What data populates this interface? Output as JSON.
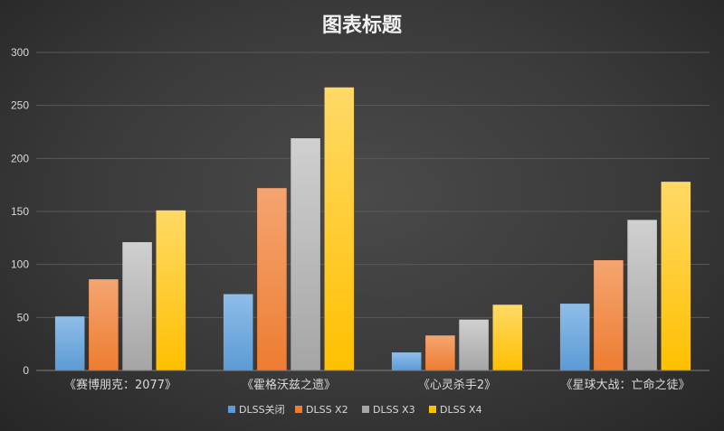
{
  "title": "图表标题",
  "colors": {
    "background": "#3a3a3a",
    "grid": "#595959",
    "text": "#d9d9d9",
    "series": [
      "#5b9bd5",
      "#ed7d31",
      "#a5a5a5",
      "#ffc000"
    ],
    "series_light": [
      "#8fbde8",
      "#f5a571",
      "#d0d0d0",
      "#ffd966"
    ]
  },
  "chart_data": {
    "type": "bar",
    "title": "图表标题",
    "categories": [
      "《赛博朋克：2077》",
      "《霍格沃兹之遗》",
      "《心灵杀手2》",
      "《星球大战：亡命之徒》"
    ],
    "series": [
      {
        "name": "DLSS关闭",
        "values": [
          51,
          72,
          17,
          63
        ]
      },
      {
        "name": "DLSS X2",
        "values": [
          86,
          172,
          33,
          104
        ]
      },
      {
        "name": "DLSS X3",
        "values": [
          121,
          219,
          48,
          142
        ]
      },
      {
        "name": "DLSS X4",
        "values": [
          151,
          267,
          62,
          178
        ]
      }
    ],
    "yticks": [
      0,
      50,
      100,
      150,
      200,
      250,
      300
    ],
    "ylim": [
      0,
      300
    ],
    "grid": true,
    "legend": "bottom",
    "xlabel": "",
    "ylabel": ""
  }
}
